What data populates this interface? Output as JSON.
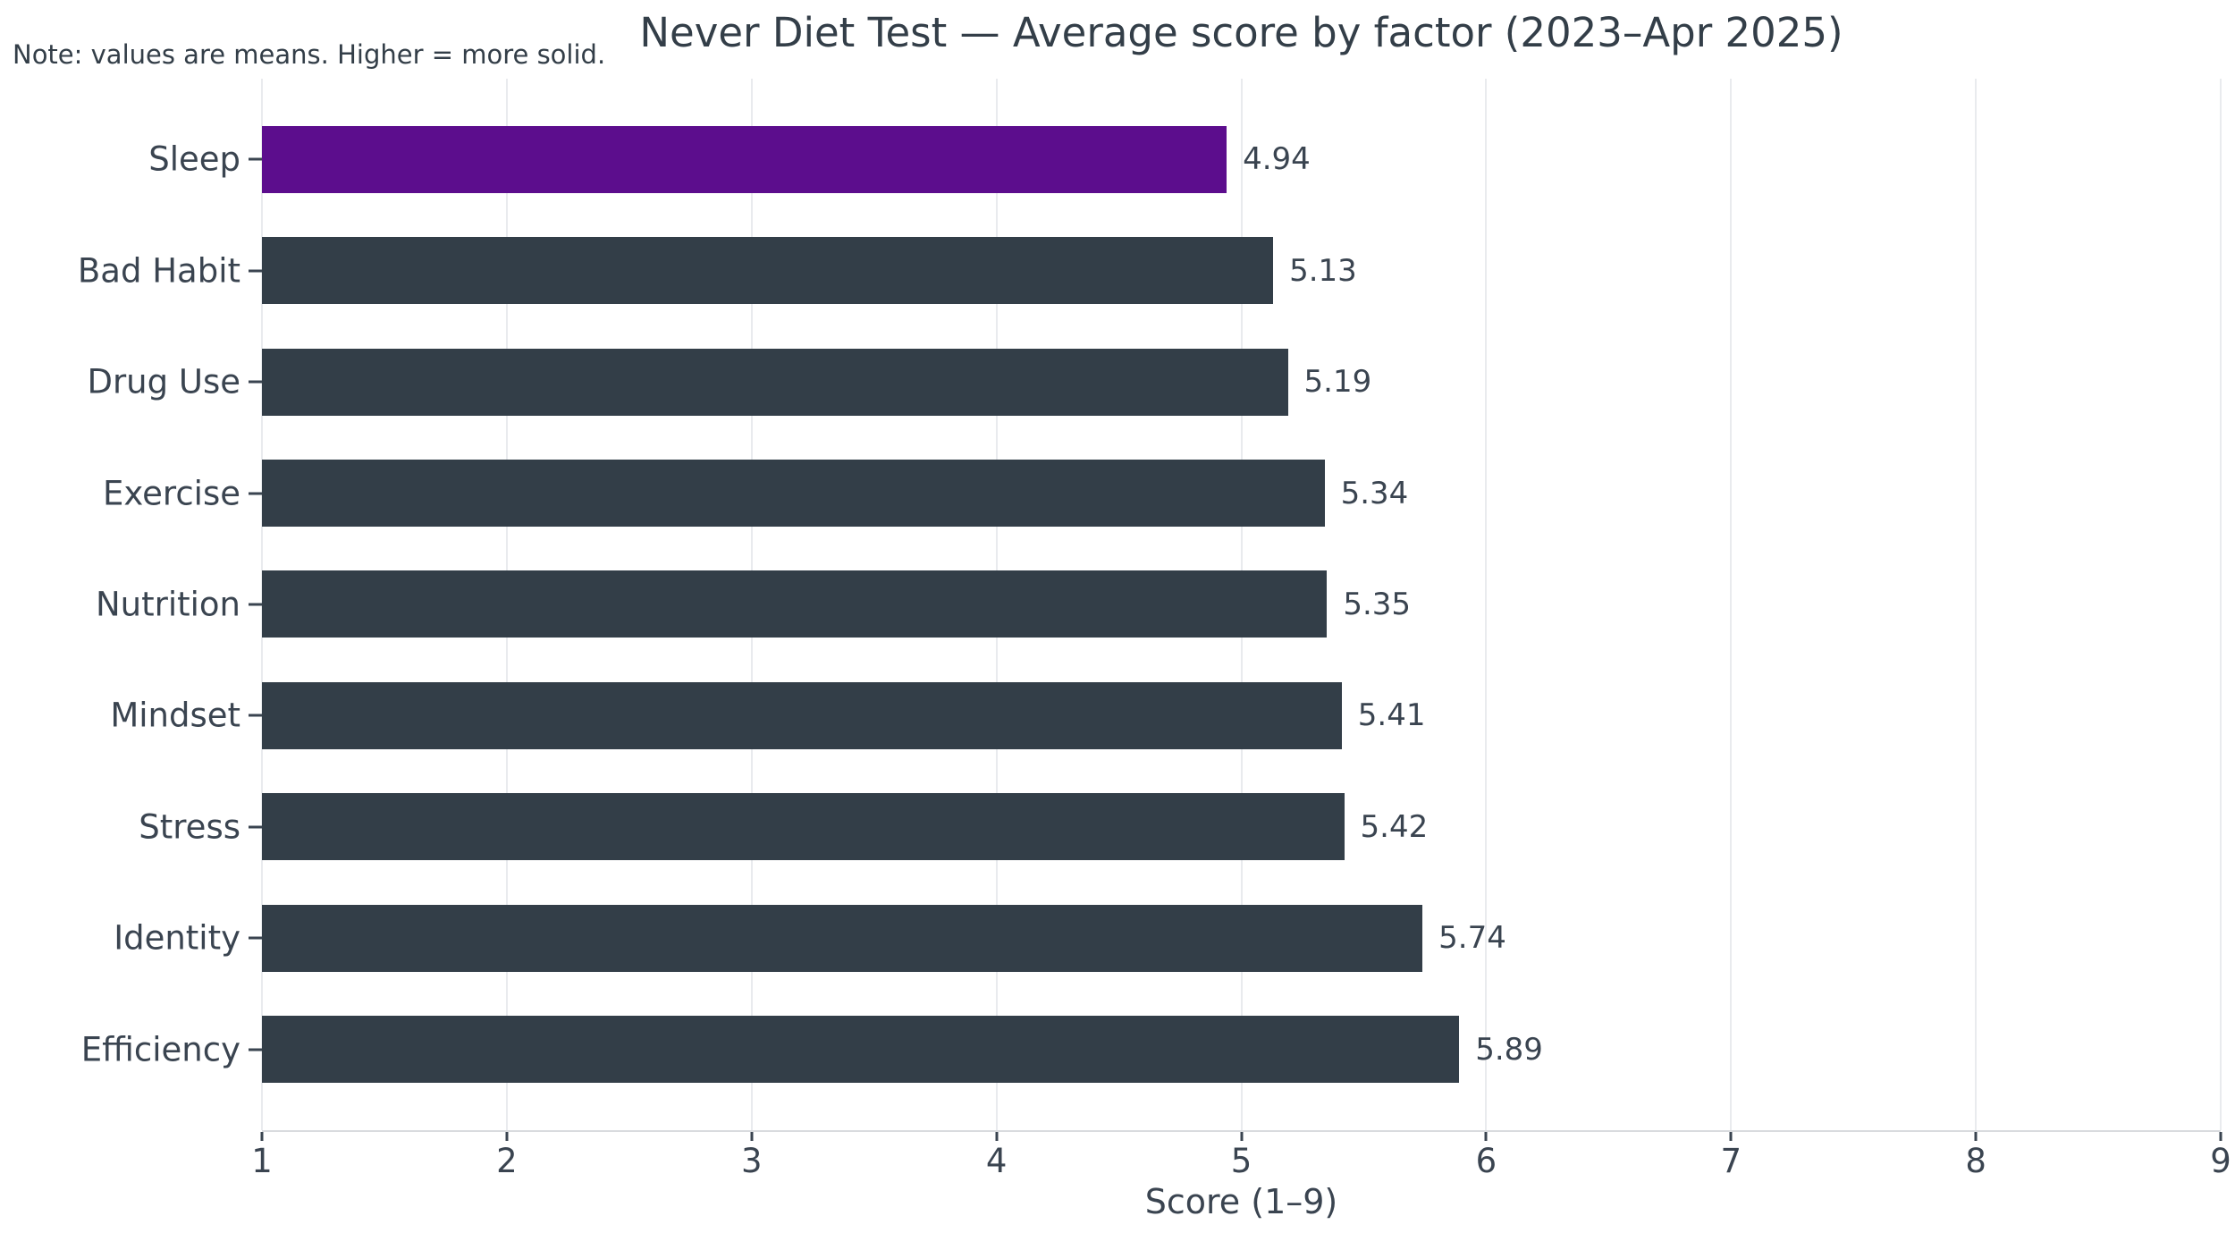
{
  "note": "Note: values are means. Higher = more solid.",
  "chart_data": {
    "type": "bar",
    "orientation": "horizontal",
    "title": "Never Diet Test — Average score by factor (2023–Apr 2025)",
    "categories": [
      "Sleep",
      "Bad Habit",
      "Drug Use",
      "Exercise",
      "Nutrition",
      "Mindset",
      "Stress",
      "Identity",
      "Efficiency"
    ],
    "values": [
      4.94,
      5.13,
      5.19,
      5.34,
      5.35,
      5.41,
      5.42,
      5.74,
      5.89
    ],
    "value_labels": [
      "4.94",
      "5.13",
      "5.19",
      "5.34",
      "5.35",
      "5.41",
      "5.42",
      "5.74",
      "5.89"
    ],
    "xlabel": "Score (1–9)",
    "xlim": [
      1,
      9
    ],
    "xticks": [
      1,
      2,
      3,
      4,
      5,
      6,
      7,
      8,
      9
    ],
    "grid": true,
    "legend": "none",
    "highlight_category": "Sleep",
    "colors": {
      "bar": "#333E48",
      "highlight": "#5C0D8D",
      "text": "#3A4450",
      "gridline": "#E9EBEE",
      "axis_line": "#D9DBDE",
      "tick_mark": "#3A4450"
    }
  }
}
